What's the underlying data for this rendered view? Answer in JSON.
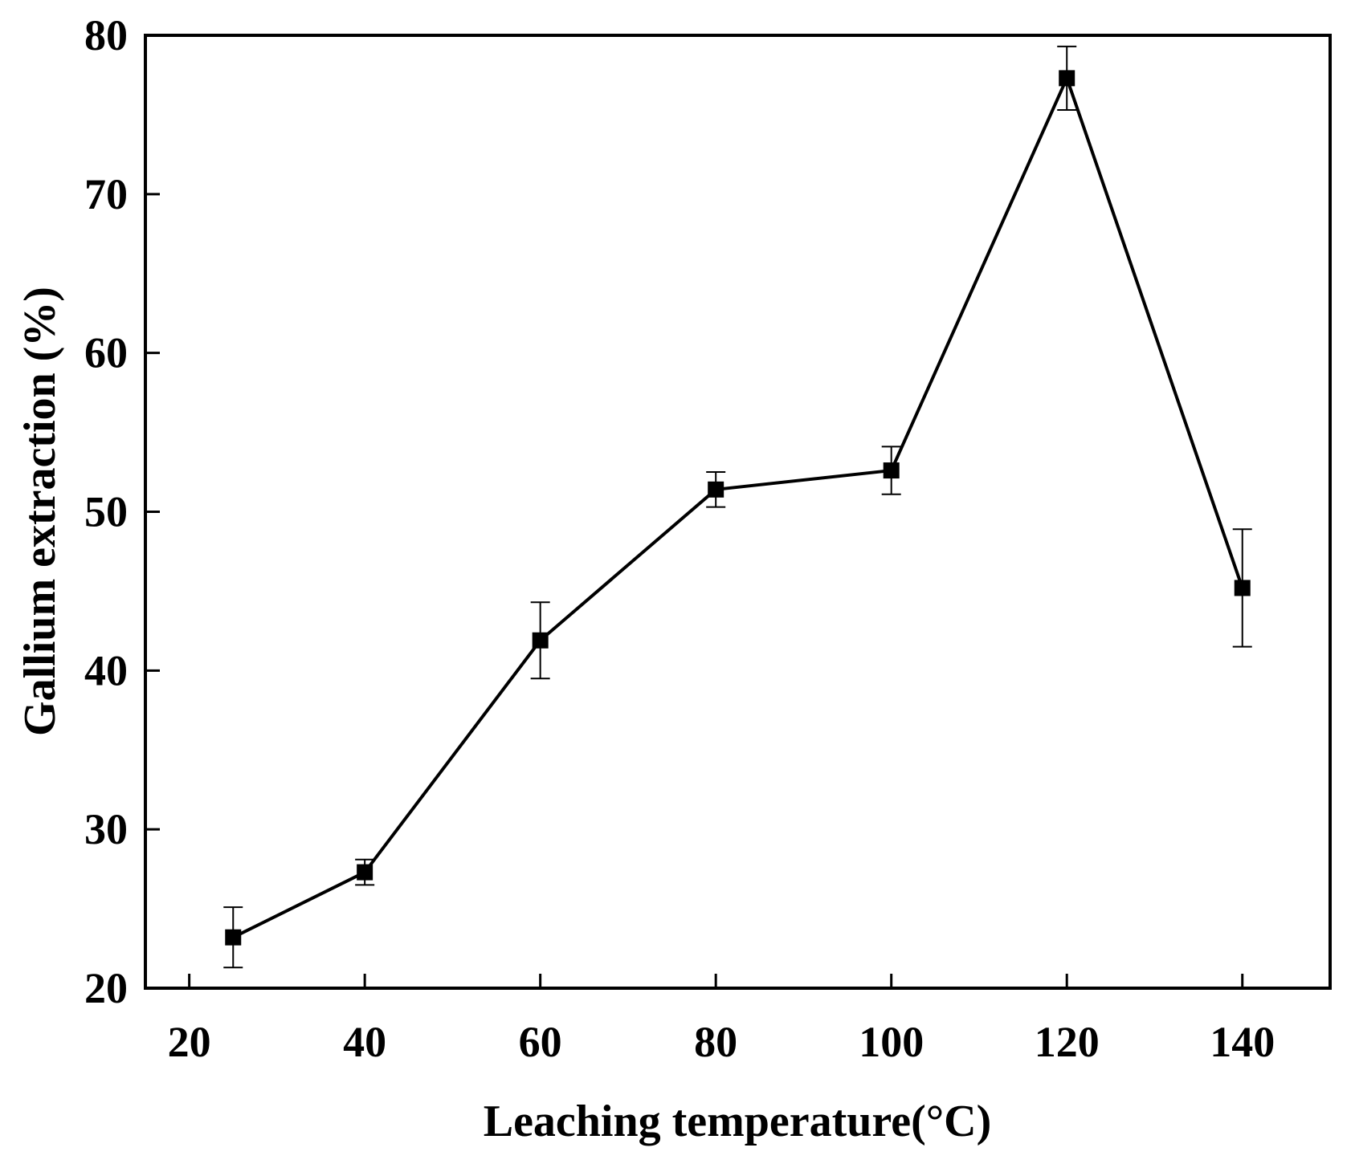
{
  "chart_data": {
    "type": "line",
    "title": "",
    "xlabel": "Leaching temperature(°C)",
    "ylabel": "Gallium extraction (%)",
    "xlim": [
      15,
      150
    ],
    "ylim": [
      20,
      80
    ],
    "xticks": [
      20,
      40,
      60,
      80,
      100,
      120,
      140
    ],
    "yticks": [
      20,
      30,
      40,
      50,
      60,
      70,
      80
    ],
    "grid": false,
    "legend": "none",
    "marker": "square",
    "color": "#000000",
    "series": [
      {
        "x": [
          25,
          40,
          60,
          80,
          100,
          120,
          140
        ],
        "y": [
          23.2,
          27.3,
          41.9,
          51.4,
          52.6,
          77.3,
          45.2
        ],
        "error": [
          1.9,
          0.8,
          2.4,
          1.1,
          1.5,
          2.0,
          3.7
        ]
      }
    ]
  }
}
